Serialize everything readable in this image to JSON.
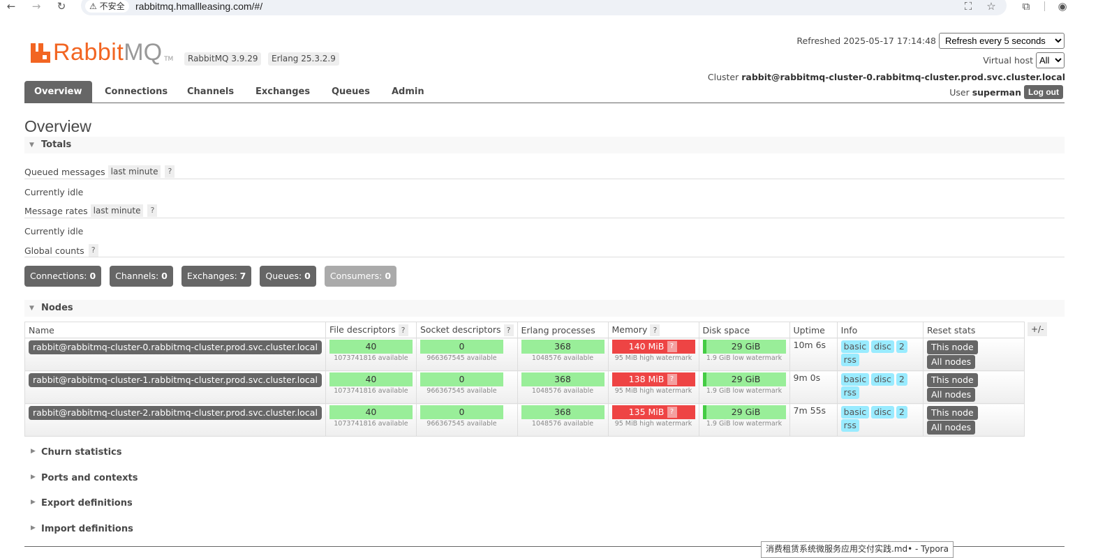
{
  "browser": {
    "insecure_label": "⚠ 不安全",
    "url": "rabbitmq.hmallleasing.com/#/"
  },
  "header": {
    "logo_rabbit": "Rabbit",
    "logo_mq": "MQ",
    "logo_tm": "TM",
    "version": "RabbitMQ 3.9.29",
    "erlang": "Erlang 25.3.2.9",
    "refreshed_label": "Refreshed",
    "refreshed_time": "2025-05-17 17:14:48",
    "refresh_option": "Refresh every 5 seconds",
    "vhost_label": "Virtual host",
    "vhost_option": "All",
    "cluster_label": "Cluster",
    "cluster_name": "rabbit@rabbitmq-cluster-0.rabbitmq-cluster.prod.svc.cluster.local",
    "user_label": "User",
    "user_name": "superman",
    "logout_label": "Log out"
  },
  "tabs": [
    "Overview",
    "Connections",
    "Channels",
    "Exchanges",
    "Queues",
    "Admin"
  ],
  "page_title": "Overview",
  "totals": {
    "heading": "Totals",
    "queued_label": "Queued messages",
    "queued_chip": "last minute",
    "queued_status": "Currently idle",
    "rates_label": "Message rates",
    "rates_chip": "last minute",
    "rates_status": "Currently idle",
    "global_label": "Global counts",
    "help": "?"
  },
  "counts": [
    {
      "label": "Connections:",
      "value": "0"
    },
    {
      "label": "Channels:",
      "value": "0"
    },
    {
      "label": "Exchanges:",
      "value": "7"
    },
    {
      "label": "Queues:",
      "value": "0"
    },
    {
      "label": "Consumers:",
      "value": "0"
    }
  ],
  "nodes": {
    "heading": "Nodes",
    "columns": [
      "Name",
      "File descriptors",
      "Socket descriptors",
      "Erlang processes",
      "Memory",
      "Disk space",
      "Uptime",
      "Info",
      "Reset stats"
    ],
    "plus_minus": "+/-",
    "rows": [
      {
        "name": "rabbit@rabbitmq-cluster-0.rabbitmq-cluster.prod.svc.cluster.local",
        "fd": "40",
        "fd_sub": "1073741816 available",
        "sd": "0",
        "sd_sub": "966367545 available",
        "ep": "368",
        "ep_sub": "1048576 available",
        "mem": "140 MiB",
        "mem_sub": "95 MiB high watermark",
        "disk": "29 GiB",
        "disk_sub": "1.9 GiB low watermark",
        "uptime": "10m 6s",
        "info": [
          "basic",
          "disc",
          "2",
          "rss"
        ],
        "reset": [
          "This node",
          "All nodes"
        ]
      },
      {
        "name": "rabbit@rabbitmq-cluster-1.rabbitmq-cluster.prod.svc.cluster.local",
        "fd": "40",
        "fd_sub": "1073741816 available",
        "sd": "0",
        "sd_sub": "966367545 available",
        "ep": "368",
        "ep_sub": "1048576 available",
        "mem": "138 MiB",
        "mem_sub": "95 MiB high watermark",
        "disk": "29 GiB",
        "disk_sub": "1.9 GiB low watermark",
        "uptime": "9m 0s",
        "info": [
          "basic",
          "disc",
          "2",
          "rss"
        ],
        "reset": [
          "This node",
          "All nodes"
        ]
      },
      {
        "name": "rabbit@rabbitmq-cluster-2.rabbitmq-cluster.prod.svc.cluster.local",
        "fd": "40",
        "fd_sub": "1073741816 available",
        "sd": "0",
        "sd_sub": "966367545 available",
        "ep": "368",
        "ep_sub": "1048576 available",
        "mem": "135 MiB",
        "mem_sub": "95 MiB high watermark",
        "disk": "29 GiB",
        "disk_sub": "1.9 GiB low watermark",
        "uptime": "7m 55s",
        "info": [
          "basic",
          "disc",
          "2",
          "rss"
        ],
        "reset": [
          "This node",
          "All nodes"
        ]
      }
    ]
  },
  "collapsed_sections": [
    "Churn statistics",
    "Ports and contexts",
    "Export definitions",
    "Import definitions"
  ],
  "taskbar_tip": "消费租赁系统微服务应用交付实践.md• - Typora",
  "colors": {
    "brand": "#f26522",
    "tab_active": "#666666",
    "ok_green": "#99ee99",
    "alarm_red": "#ee4444",
    "info_blue": "#99ebff"
  }
}
